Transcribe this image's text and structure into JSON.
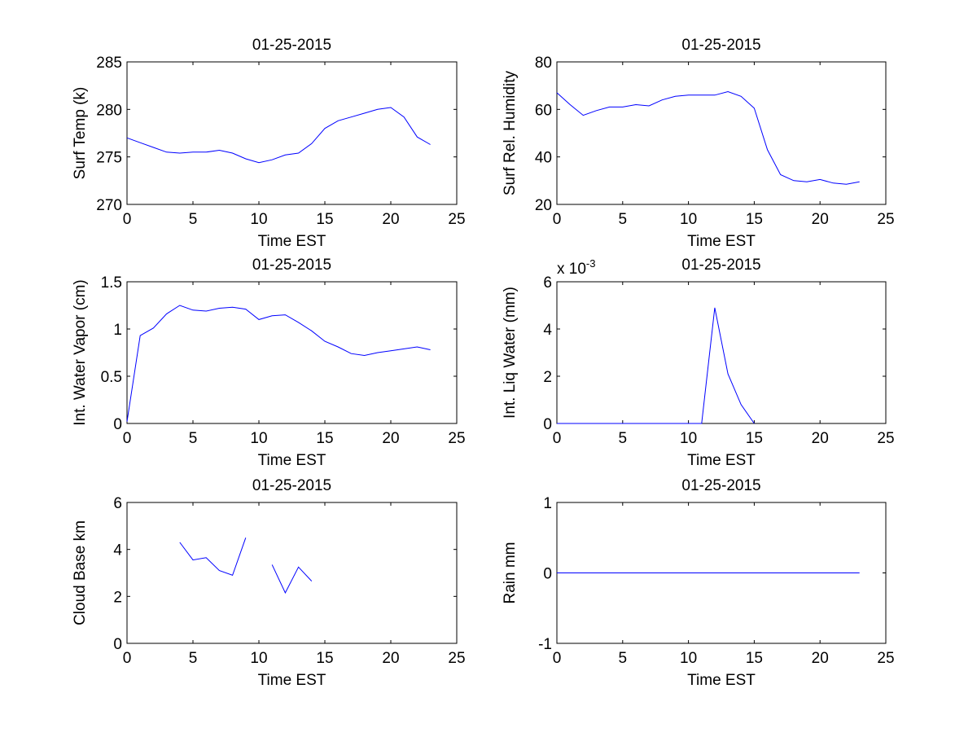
{
  "chart_data": [
    {
      "type": "line",
      "title": "01-25-2015",
      "xlabel": "Time EST",
      "ylabel": "Surf Temp (k)",
      "xlim": [
        0,
        25
      ],
      "ylim": [
        270,
        285
      ],
      "xticks": [
        0,
        5,
        10,
        15,
        20,
        25
      ],
      "yticks": [
        270,
        275,
        280,
        285
      ],
      "ytick_labels": [
        "270",
        "275",
        "280",
        "285"
      ],
      "exponent_label": null,
      "x": [
        0,
        1,
        2,
        3,
        4,
        5,
        6,
        7,
        8,
        9,
        10,
        11,
        12,
        13,
        14,
        15,
        16,
        17,
        18,
        19,
        20,
        21,
        22,
        23
      ],
      "y": [
        277.0,
        276.5,
        276.0,
        275.5,
        275.4,
        275.5,
        275.5,
        275.7,
        275.4,
        274.8,
        274.4,
        274.7,
        275.2,
        275.4,
        276.4,
        278.0,
        278.8,
        279.2,
        279.6,
        280.0,
        280.2,
        279.2,
        277.1,
        276.3
      ],
      "color": "#0000ff"
    },
    {
      "type": "line",
      "title": "01-25-2015",
      "xlabel": "Time EST",
      "ylabel": "Surf Rel. Humidity",
      "xlim": [
        0,
        25
      ],
      "ylim": [
        20,
        80
      ],
      "xticks": [
        0,
        5,
        10,
        15,
        20,
        25
      ],
      "yticks": [
        20,
        40,
        60,
        80
      ],
      "ytick_labels": [
        "20",
        "40",
        "60",
        "80"
      ],
      "exponent_label": null,
      "x": [
        0,
        1,
        2,
        3,
        4,
        5,
        6,
        7,
        8,
        9,
        10,
        11,
        12,
        13,
        14,
        15,
        16,
        17,
        18,
        19,
        20,
        21,
        22,
        23
      ],
      "y": [
        67,
        62,
        57.5,
        59.5,
        61,
        61,
        62,
        61.5,
        64,
        65.5,
        66,
        66,
        66,
        67.5,
        65.5,
        60.5,
        43,
        32.5,
        30,
        29.5,
        30.5,
        29,
        28.5,
        29.5
      ],
      "color": "#0000ff"
    },
    {
      "type": "line",
      "title": "01-25-2015",
      "xlabel": "Time EST",
      "ylabel": "Int. Water Vapor (cm)",
      "xlim": [
        0,
        25
      ],
      "ylim": [
        0,
        1.5
      ],
      "xticks": [
        0,
        5,
        10,
        15,
        20,
        25
      ],
      "yticks": [
        0,
        0.5,
        1,
        1.5
      ],
      "ytick_labels": [
        "0",
        "0.5",
        "1",
        "1.5"
      ],
      "exponent_label": null,
      "x": [
        0,
        1,
        2,
        3,
        4,
        5,
        6,
        7,
        8,
        9,
        10,
        11,
        12,
        13,
        14,
        15,
        16,
        17,
        18,
        19,
        20,
        21,
        22,
        23
      ],
      "y": [
        0.02,
        0.93,
        1.01,
        1.16,
        1.25,
        1.2,
        1.19,
        1.22,
        1.23,
        1.21,
        1.1,
        1.14,
        1.15,
        1.07,
        0.98,
        0.87,
        0.81,
        0.74,
        0.72,
        0.75,
        0.77,
        0.79,
        0.81,
        0.78
      ],
      "color": "#0000ff"
    },
    {
      "type": "line",
      "title": "01-25-2015",
      "xlabel": "Time EST",
      "ylabel": "Int. Liq Water (mm)",
      "xlim": [
        0,
        25
      ],
      "ylim": [
        0,
        6
      ],
      "xticks": [
        0,
        5,
        10,
        15,
        20,
        25
      ],
      "yticks": [
        0,
        2,
        4,
        6
      ],
      "ytick_labels": [
        "0",
        "2",
        "4",
        "6"
      ],
      "exponent_label": "x 10",
      "exponent_power": "-3",
      "y_scale": 0.001,
      "x": [
        0,
        1,
        2,
        3,
        4,
        5,
        6,
        7,
        8,
        9,
        10,
        11,
        12,
        13,
        14,
        15,
        16,
        17,
        18,
        19,
        20,
        21,
        22,
        23
      ],
      "y": [
        0,
        0,
        0,
        0,
        0,
        0,
        0,
        0,
        0,
        0,
        0,
        0,
        4.9,
        2.1,
        0.8,
        0,
        null,
        null,
        null,
        null,
        null,
        null,
        null,
        null
      ],
      "color": "#0000ff"
    },
    {
      "type": "line",
      "title": "01-25-2015",
      "xlabel": "Time EST",
      "ylabel": "Cloud Base km",
      "xlim": [
        0,
        25
      ],
      "ylim": [
        0,
        6
      ],
      "xticks": [
        0,
        5,
        10,
        15,
        20,
        25
      ],
      "yticks": [
        0,
        2,
        4,
        6
      ],
      "ytick_labels": [
        "0",
        "2",
        "4",
        "6"
      ],
      "exponent_label": null,
      "x": [
        0,
        1,
        2,
        3,
        4,
        5,
        6,
        7,
        8,
        9,
        10,
        11,
        12,
        13,
        14,
        15,
        16,
        17,
        18,
        19,
        20,
        21,
        22,
        23
      ],
      "y": [
        null,
        null,
        null,
        null,
        4.3,
        3.55,
        3.65,
        3.1,
        2.9,
        4.5,
        null,
        3.35,
        2.15,
        3.25,
        2.65,
        null,
        null,
        null,
        null,
        null,
        null,
        null,
        null,
        null
      ],
      "color": "#0000ff"
    },
    {
      "type": "line",
      "title": "01-25-2015",
      "xlabel": "Time EST",
      "ylabel": "Rain mm",
      "xlim": [
        0,
        25
      ],
      "ylim": [
        -1,
        1
      ],
      "xticks": [
        0,
        5,
        10,
        15,
        20,
        25
      ],
      "yticks": [
        -1,
        0,
        1
      ],
      "ytick_labels": [
        "-1",
        "0",
        "1"
      ],
      "exponent_label": null,
      "x": [
        0,
        1,
        2,
        3,
        4,
        5,
        6,
        7,
        8,
        9,
        10,
        11,
        12,
        13,
        14,
        15,
        16,
        17,
        18,
        19,
        20,
        21,
        22,
        23
      ],
      "y": [
        0,
        0,
        0,
        0,
        0,
        0,
        0,
        0,
        0,
        0,
        0,
        0,
        0,
        0,
        0,
        0,
        0,
        0,
        0,
        0,
        0,
        0,
        0,
        0
      ],
      "color": "#0000ff"
    }
  ]
}
